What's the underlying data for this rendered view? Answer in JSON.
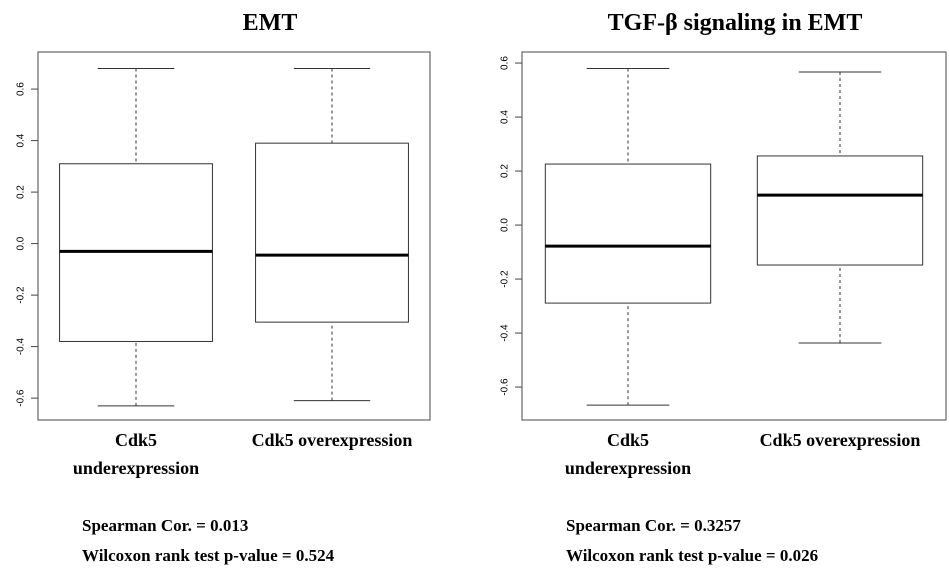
{
  "chart_data": [
    {
      "type": "box",
      "title": "EMT",
      "categories": [
        "Cdk5 underexpression",
        "Cdk5 overexpression"
      ],
      "low": [
        -0.63,
        -0.61
      ],
      "q1": [
        -0.38,
        -0.305
      ],
      "median": [
        -0.03,
        -0.045
      ],
      "q3": [
        0.31,
        0.39
      ],
      "high": [
        0.68,
        0.68
      ],
      "ylim": [
        -0.685,
        0.744
      ],
      "yticks": [
        -0.6,
        -0.4,
        -0.2,
        {
          "value": 0,
          "label": "0.0"
        },
        0.2,
        0.4,
        0.6
      ],
      "annotations": [
        "Spearman Cor. = 0.013",
        "Wilcoxon rank test p-value = 0.524"
      ]
    },
    {
      "type": "box",
      "title": "TGF-β signaling in EMT",
      "categories": [
        "Cdk5 underexpression",
        "Cdk5 overexpression"
      ],
      "low": [
        -0.667,
        -0.437
      ],
      "q1": [
        -0.289,
        -0.148
      ],
      "median": [
        -0.078,
        0.111
      ],
      "q3": [
        0.226,
        0.256
      ],
      "high": [
        0.58,
        0.567
      ],
      "ylim": [
        -0.722,
        0.641
      ],
      "yticks": [
        -0.6,
        -0.4,
        -0.2,
        {
          "value": 0,
          "label": "0.0"
        },
        0.2,
        0.4,
        0.6
      ],
      "annotations": [
        "Spearman Cor. = 0.3257",
        "Wilcoxon rank test p-value = 0.026"
      ]
    }
  ]
}
